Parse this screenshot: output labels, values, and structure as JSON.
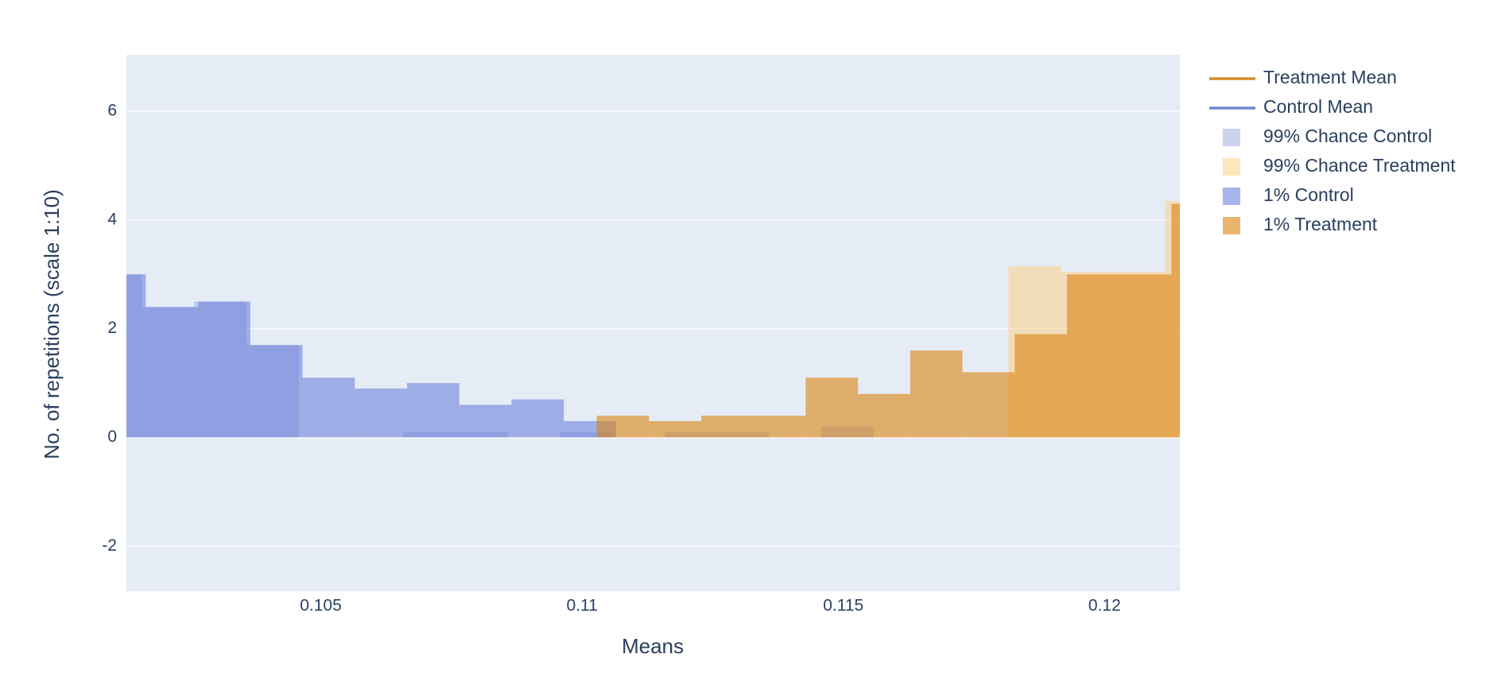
{
  "chart_data": {
    "type": "histogram",
    "x_label": "Means",
    "y_label": "No. of repetitions (scale 1:10)",
    "xlim": [
      0.10128,
      0.12144
    ],
    "ylim": [
      -2.83,
      7.04
    ],
    "xticks": [
      0.105,
      0.11,
      0.115,
      0.12
    ],
    "yticks": [
      -2,
      0,
      2,
      4,
      6
    ],
    "grid": true,
    "opacity": 0.6,
    "legend": "right",
    "lines": [
      {
        "name": "Treatment Mean",
        "color": "#d98c2e"
      },
      {
        "name": "Control Mean",
        "color": "#7386d6"
      }
    ],
    "series": [
      {
        "name": "99% Chance Control",
        "color": "#a9b2e4",
        "bins": [
          0.10058,
          0.10158,
          0.10258,
          0.10358,
          0.10458,
          0.10558,
          0.10658,
          0.10758,
          0.10858,
          0.10958,
          0.11058,
          0.11158,
          0.11258,
          0.11358,
          0.11458,
          0.11558
        ],
        "values": [
          3.0,
          2.4,
          2.5,
          1.7,
          0,
          0,
          0.1,
          0.1,
          0,
          0.1,
          0,
          0.1,
          0.1,
          0,
          0.2
        ]
      },
      {
        "name": "99% Chance Treatment",
        "color": "#fcd390",
        "bins": [
          0.11816,
          0.11916,
          0.12016,
          0.12116,
          0.12216
        ],
        "values": [
          3.15,
          3.05,
          3.05,
          4.35
        ]
      },
      {
        "name": "1% Control",
        "color": "#6e84dc",
        "bins": [
          0.10065,
          0.10165,
          0.10265,
          0.10365,
          0.10465,
          0.10565,
          0.10665,
          0.10765,
          0.10865,
          0.10965,
          0.11065
        ],
        "values": [
          3.0,
          2.4,
          2.5,
          1.7,
          1.1,
          0.9,
          1.0,
          0.6,
          0.7,
          0.3
        ]
      },
      {
        "name": "1% Treatment",
        "color": "#db8410",
        "bins": [
          0.11028,
          0.11128,
          0.11228,
          0.11328,
          0.11428,
          0.11528,
          0.11628,
          0.11728,
          0.11828,
          0.11928,
          0.12028,
          0.12128,
          0.12228
        ],
        "values": [
          0.4,
          0.3,
          0.4,
          0.4,
          1.1,
          0.8,
          1.6,
          1.2,
          1.9,
          3.0,
          3.0,
          4.3
        ]
      }
    ]
  }
}
